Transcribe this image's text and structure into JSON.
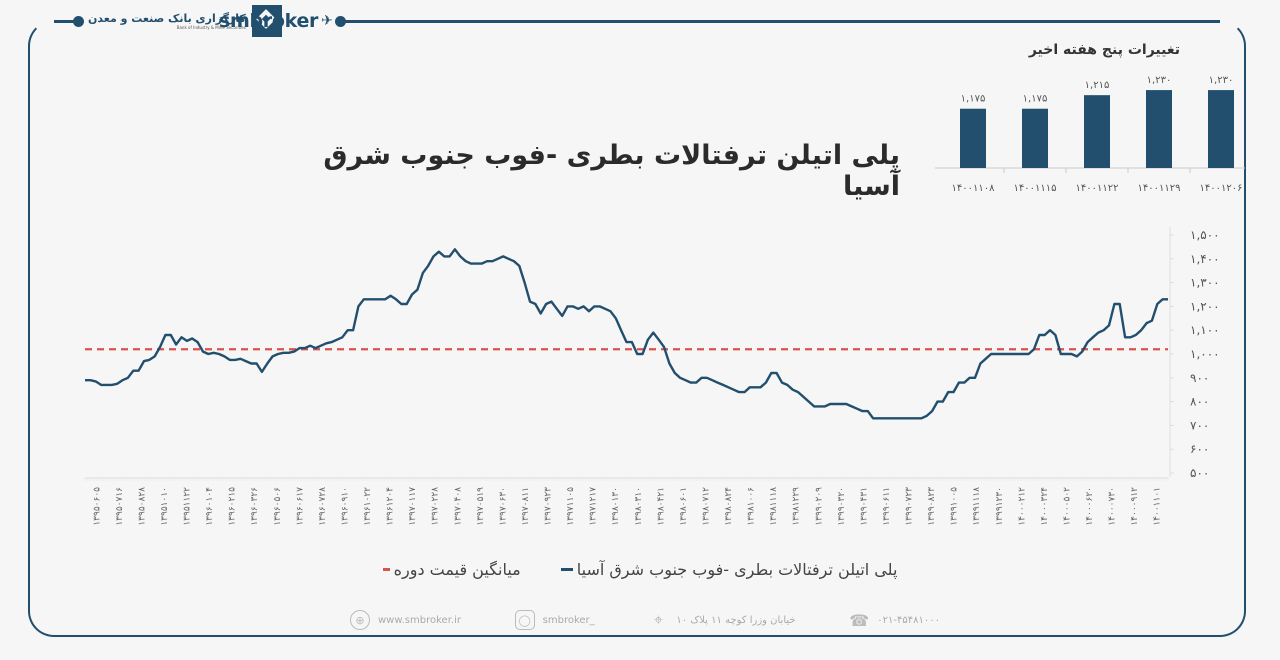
{
  "header": {
    "logo_fa": "کارگزاری بانک صنعت و معدن",
    "logo_en": "Bank of Industry & Mine Securities",
    "brand": "smbroker",
    "plane_icon": "✈"
  },
  "title": "پلی اتیلن ترفتالات بطری -فوب جنوب شرق آسیا",
  "colors": {
    "series": "#234f6e",
    "average": "#d9534f",
    "frame": "#234f6e",
    "bar": "#234f6e"
  },
  "legend": {
    "series_label": "پلی اتیلن ترفتالات بطری -فوب جنوب شرق آسیا",
    "average_label": "میانگین قیمت دوره"
  },
  "footer": {
    "website": "www.smbroker.ir",
    "instagram": "smbroker_",
    "address": "خیابان وزرا کوچه ۱۱ پلاک ۱۰",
    "phone": "۰۲۱-۴۵۴۸۱۰۰۰"
  },
  "chart_data": [
    {
      "type": "bar",
      "title": "تغییرات پنج هفته اخیر",
      "categories": [
        "۱۴۰۰۱۱۰۸",
        "۱۴۰۰۱۱۱۵",
        "۱۴۰۰۱۱۲۲",
        "۱۴۰۰۱۱۲۹",
        "۱۴۰۰۱۲۰۶"
      ],
      "values": [
        1175,
        1175,
        1215,
        1230,
        1230
      ],
      "value_labels": [
        "۱,۱۷۵",
        "۱,۱۷۵",
        "۱,۲۱۵",
        "۱,۲۳۰",
        "۱,۲۳۰"
      ]
    },
    {
      "type": "line",
      "title": "پلی اتیلن ترفتالات بطری -فوب جنوب شرق آسیا",
      "ylim": [
        500,
        1500
      ],
      "yticks": [
        1500,
        1400,
        1300,
        1200,
        1100,
        1000,
        900,
        800,
        700,
        600,
        500
      ],
      "ytick_labels": [
        "۱,۵۰۰",
        "۱,۴۰۰",
        "۱,۳۰۰",
        "۱,۲۰۰",
        "۱,۱۰۰",
        "۱,۰۰۰",
        "۹۰۰",
        "۸۰۰",
        "۷۰۰",
        "۶۰۰",
        "۵۰۰"
      ],
      "y_axis_position": "right",
      "xtick_labels": [
        "۱۳۹۵۰۶۰۵",
        "۱۳۹۵۰۷۱۶",
        "۱۳۹۵۰۸۲۸",
        "۱۳۹۵۱۰۱۰",
        "۱۳۹۵۱۱۲۲",
        "۱۳۹۶۰۱۰۴",
        "۱۳۹۶۰۲۱۵",
        "۱۳۹۶۰۳۲۶",
        "۱۳۹۶۰۵۰۶",
        "۱۳۹۶۰۶۱۷",
        "۱۳۹۶۰۷۲۸",
        "۱۳۹۶۰۹۱۰",
        "۱۳۹۶۱۰۲۲",
        "۱۳۹۶۱۲۰۴",
        "۱۳۹۷۰۱۱۷",
        "۱۳۹۷۰۲۲۸",
        "۱۳۹۷۰۴۰۸",
        "۱۳۹۷۰۵۱۹",
        "۱۳۹۷۰۶۳۰",
        "۱۳۹۷۰۸۱۱",
        "۱۳۹۷۰۹۲۳",
        "۱۳۹۷۱۱۰۵",
        "۱۳۹۷۱۲۱۷",
        "۱۳۹۸۰۱۳۰",
        "۱۳۹۸۰۳۱۰",
        "۱۳۹۸۰۴۲۱",
        "۱۳۹۸۰۶۰۱",
        "۱۳۹۸۰۷۱۲",
        "۱۳۹۸۰۸۲۴",
        "۱۳۹۸۱۰۰۶",
        "۱۳۹۸۱۱۱۸",
        "۱۳۹۸۱۲۲۹",
        "۱۳۹۹۰۲۰۹",
        "۱۳۹۹۰۳۲۰",
        "۱۳۹۹۰۴۳۱",
        "۱۳۹۹۰۶۱۱",
        "۱۳۹۹۰۷۲۳",
        "۱۳۹۹۰۸۲۳",
        "۱۳۹۹۱۰۰۵",
        "۱۳۹۹۱۱۱۸",
        "۱۳۹۹۱۲۳۰",
        "۱۴۰۰۰۲۱۲",
        "۱۴۰۰۰۳۲۴",
        "۱۴۰۰۰۵۰۲",
        "۱۴۰۰۰۶۲۰",
        "۱۴۰۰۰۷۳۰",
        "۱۴۰۰۰۹۱۲",
        "۱۴۰۰۱۱۰۱"
      ],
      "series": [
        {
          "name": "پلی اتیلن ترفتالات بطری -فوب جنوب شرق آسیا",
          "values": [
            890,
            890,
            885,
            870,
            870,
            870,
            875,
            890,
            900,
            930,
            930,
            970,
            975,
            990,
            1030,
            1080,
            1080,
            1040,
            1070,
            1055,
            1065,
            1050,
            1010,
            1000,
            1005,
            1000,
            990,
            975,
            975,
            980,
            970,
            960,
            960,
            925,
            960,
            990,
            1000,
            1005,
            1005,
            1010,
            1025,
            1025,
            1035,
            1025,
            1035,
            1045,
            1050,
            1060,
            1070,
            1100,
            1100,
            1200,
            1230,
            1230,
            1230,
            1230,
            1230,
            1245,
            1230,
            1210,
            1210,
            1250,
            1270,
            1340,
            1370,
            1410,
            1430,
            1410,
            1410,
            1440,
            1410,
            1390,
            1380,
            1380,
            1380,
            1390,
            1390,
            1400,
            1410,
            1400,
            1390,
            1370,
            1300,
            1220,
            1210,
            1170,
            1210,
            1220,
            1190,
            1160,
            1200,
            1200,
            1190,
            1200,
            1180,
            1200,
            1200,
            1190,
            1180,
            1150,
            1100,
            1050,
            1050,
            1000,
            1000,
            1060,
            1090,
            1060,
            1030,
            960,
            920,
            900,
            890,
            880,
            880,
            900,
            900,
            890,
            880,
            870,
            860,
            850,
            840,
            840,
            860,
            860,
            860,
            880,
            920,
            920,
            880,
            870,
            850,
            840,
            820,
            800,
            780,
            780,
            780,
            790,
            790,
            790,
            790,
            780,
            770,
            760,
            760,
            730,
            730,
            730,
            730,
            730,
            730,
            730,
            730,
            730,
            730,
            740,
            760,
            800,
            800,
            840,
            840,
            880,
            880,
            900,
            900,
            960,
            980,
            1000,
            1000,
            1000,
            1000,
            1000,
            1000,
            1000,
            1000,
            1020,
            1080,
            1080,
            1100,
            1080,
            1000,
            1000,
            1000,
            990,
            1010,
            1050,
            1070,
            1090,
            1100,
            1120,
            1210,
            1210,
            1070,
            1070,
            1080,
            1100,
            1130,
            1140,
            1210,
            1230,
            1230
          ]
        },
        {
          "name": "میانگین قیمت دوره",
          "style": "dashed",
          "constant_value": 1020
        }
      ]
    }
  ]
}
